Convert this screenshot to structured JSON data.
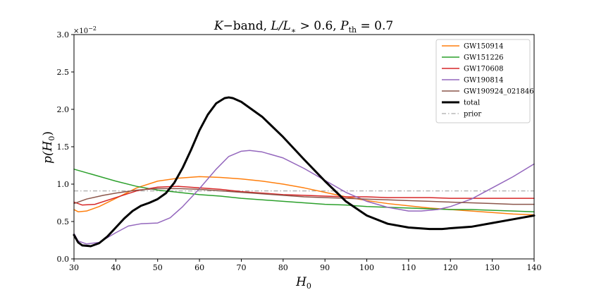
{
  "chart_data": {
    "type": "line",
    "title": "K−band, L/L∗ > 0.6, P_th = 0.7",
    "title_parts": {
      "k": "K",
      "band": "−band, ",
      "l": "L/L",
      "star": "∗",
      "gt": " > 0.6, ",
      "p": "P",
      "th": "th",
      "eq": " = 0.7"
    },
    "xlabel": "H",
    "xlabel_sub": "0",
    "ylabel": "p(H",
    "ylabel_sub": "0",
    "ylabel_close": ")",
    "y_multiplier": "×10",
    "y_multiplier_exp": "−2",
    "xlim": [
      30,
      140
    ],
    "ylim": [
      0.0,
      3.0
    ],
    "x_ticks": [
      "30",
      "40",
      "50",
      "60",
      "70",
      "80",
      "90",
      "100",
      "110",
      "120",
      "130",
      "140"
    ],
    "y_ticks": [
      "0.0",
      "0.5",
      "1.0",
      "1.5",
      "2.0",
      "2.5",
      "3.0"
    ],
    "grid": false,
    "legend_position": "top-right",
    "series": [
      {
        "name": "GW150914",
        "color": "#ff7f0e",
        "width": 1.5,
        "dash": "",
        "points": [
          [
            30,
            0.66
          ],
          [
            31,
            0.63
          ],
          [
            33,
            0.64
          ],
          [
            36,
            0.7
          ],
          [
            40,
            0.81
          ],
          [
            45,
            0.95
          ],
          [
            50,
            1.04
          ],
          [
            55,
            1.08
          ],
          [
            60,
            1.1
          ],
          [
            65,
            1.09
          ],
          [
            70,
            1.07
          ],
          [
            75,
            1.04
          ],
          [
            80,
            1.0
          ],
          [
            85,
            0.95
          ],
          [
            90,
            0.89
          ],
          [
            95,
            0.83
          ],
          [
            100,
            0.78
          ],
          [
            105,
            0.74
          ],
          [
            110,
            0.71
          ],
          [
            115,
            0.68
          ],
          [
            120,
            0.66
          ],
          [
            125,
            0.64
          ],
          [
            130,
            0.62
          ],
          [
            135,
            0.6
          ],
          [
            140,
            0.59
          ]
        ]
      },
      {
        "name": "GW151226",
        "color": "#2ca02c",
        "width": 1.5,
        "dash": "",
        "points": [
          [
            30,
            1.2
          ],
          [
            35,
            1.12
          ],
          [
            40,
            1.04
          ],
          [
            45,
            0.97
          ],
          [
            50,
            0.92
          ],
          [
            55,
            0.89
          ],
          [
            60,
            0.86
          ],
          [
            65,
            0.84
          ],
          [
            70,
            0.81
          ],
          [
            75,
            0.79
          ],
          [
            80,
            0.77
          ],
          [
            85,
            0.75
          ],
          [
            90,
            0.73
          ],
          [
            95,
            0.72
          ],
          [
            100,
            0.7
          ],
          [
            105,
            0.69
          ],
          [
            110,
            0.68
          ],
          [
            115,
            0.67
          ],
          [
            120,
            0.66
          ],
          [
            125,
            0.66
          ],
          [
            130,
            0.65
          ],
          [
            135,
            0.64
          ],
          [
            140,
            0.63
          ]
        ]
      },
      {
        "name": "GW170608",
        "color": "#d62728",
        "width": 1.5,
        "dash": "",
        "points": [
          [
            30,
            0.76
          ],
          [
            32,
            0.72
          ],
          [
            35,
            0.73
          ],
          [
            40,
            0.82
          ],
          [
            45,
            0.91
          ],
          [
            50,
            0.96
          ],
          [
            55,
            0.97
          ],
          [
            60,
            0.95
          ],
          [
            65,
            0.93
          ],
          [
            70,
            0.9
          ],
          [
            75,
            0.88
          ],
          [
            80,
            0.86
          ],
          [
            85,
            0.85
          ],
          [
            90,
            0.84
          ],
          [
            95,
            0.83
          ],
          [
            100,
            0.83
          ],
          [
            105,
            0.82
          ],
          [
            110,
            0.82
          ],
          [
            115,
            0.82
          ],
          [
            120,
            0.81
          ],
          [
            125,
            0.81
          ],
          [
            130,
            0.81
          ],
          [
            135,
            0.81
          ],
          [
            140,
            0.81
          ]
        ]
      },
      {
        "name": "GW190814",
        "color": "#9467bd",
        "width": 1.5,
        "dash": "",
        "points": [
          [
            30,
            0.34
          ],
          [
            31,
            0.24
          ],
          [
            33,
            0.2
          ],
          [
            36,
            0.22
          ],
          [
            40,
            0.35
          ],
          [
            43,
            0.44
          ],
          [
            46,
            0.47
          ],
          [
            50,
            0.48
          ],
          [
            53,
            0.55
          ],
          [
            56,
            0.7
          ],
          [
            60,
            0.94
          ],
          [
            64,
            1.2
          ],
          [
            67,
            1.37
          ],
          [
            70,
            1.44
          ],
          [
            72,
            1.45
          ],
          [
            75,
            1.43
          ],
          [
            80,
            1.35
          ],
          [
            85,
            1.21
          ],
          [
            90,
            1.05
          ],
          [
            95,
            0.89
          ],
          [
            100,
            0.77
          ],
          [
            105,
            0.69
          ],
          [
            110,
            0.64
          ],
          [
            113,
            0.64
          ],
          [
            117,
            0.66
          ],
          [
            120,
            0.7
          ],
          [
            125,
            0.8
          ],
          [
            130,
            0.95
          ],
          [
            135,
            1.1
          ],
          [
            140,
            1.27
          ]
        ]
      },
      {
        "name": "GW190924_021846",
        "color": "#8c564b",
        "width": 1.5,
        "dash": "",
        "points": [
          [
            30,
            0.74
          ],
          [
            33,
            0.8
          ],
          [
            37,
            0.85
          ],
          [
            40,
            0.88
          ],
          [
            45,
            0.92
          ],
          [
            50,
            0.94
          ],
          [
            55,
            0.94
          ],
          [
            60,
            0.93
          ],
          [
            65,
            0.91
          ],
          [
            70,
            0.89
          ],
          [
            75,
            0.87
          ],
          [
            80,
            0.85
          ],
          [
            85,
            0.83
          ],
          [
            90,
            0.82
          ],
          [
            95,
            0.81
          ],
          [
            100,
            0.8
          ],
          [
            105,
            0.79
          ],
          [
            110,
            0.78
          ],
          [
            115,
            0.77
          ],
          [
            120,
            0.76
          ],
          [
            125,
            0.75
          ],
          [
            130,
            0.74
          ],
          [
            135,
            0.73
          ],
          [
            140,
            0.73
          ]
        ]
      },
      {
        "name": "total",
        "color": "#000000",
        "width": 3,
        "dash": "",
        "points": [
          [
            30,
            0.32
          ],
          [
            31,
            0.22
          ],
          [
            32,
            0.18
          ],
          [
            34,
            0.17
          ],
          [
            36,
            0.21
          ],
          [
            38,
            0.3
          ],
          [
            40,
            0.42
          ],
          [
            42,
            0.54
          ],
          [
            44,
            0.64
          ],
          [
            46,
            0.71
          ],
          [
            48,
            0.75
          ],
          [
            50,
            0.8
          ],
          [
            52,
            0.88
          ],
          [
            54,
            1.02
          ],
          [
            56,
            1.22
          ],
          [
            58,
            1.46
          ],
          [
            60,
            1.72
          ],
          [
            62,
            1.93
          ],
          [
            64,
            2.08
          ],
          [
            66,
            2.15
          ],
          [
            67,
            2.16
          ],
          [
            68,
            2.15
          ],
          [
            70,
            2.1
          ],
          [
            75,
            1.9
          ],
          [
            80,
            1.63
          ],
          [
            85,
            1.33
          ],
          [
            90,
            1.04
          ],
          [
            95,
            0.77
          ],
          [
            100,
            0.58
          ],
          [
            105,
            0.47
          ],
          [
            110,
            0.42
          ],
          [
            115,
            0.4
          ],
          [
            118,
            0.4
          ],
          [
            120,
            0.41
          ],
          [
            125,
            0.43
          ],
          [
            130,
            0.48
          ],
          [
            135,
            0.53
          ],
          [
            140,
            0.58
          ]
        ]
      },
      {
        "name": "prior",
        "color": "#aaaaaa",
        "width": 1.2,
        "dash": "6,3,1.5,3",
        "points": [
          [
            30,
            0.909
          ],
          [
            140,
            0.909
          ]
        ]
      }
    ]
  }
}
